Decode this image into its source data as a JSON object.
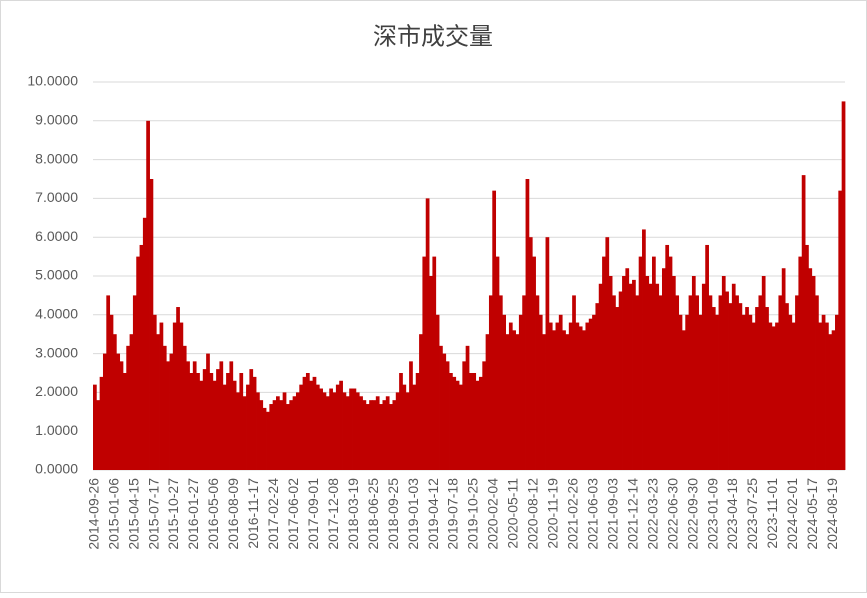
{
  "chart_data": {
    "type": "bar",
    "title": "深市成交量",
    "color": "#c00000",
    "grid": true,
    "ylim": [
      0,
      10
    ],
    "yticks": [
      {
        "value": 0,
        "label": "0.0000"
      },
      {
        "value": 1,
        "label": "1.0000"
      },
      {
        "value": 2,
        "label": "2.0000"
      },
      {
        "value": 3,
        "label": "3.0000"
      },
      {
        "value": 4,
        "label": "4.0000"
      },
      {
        "value": 5,
        "label": "5.0000"
      },
      {
        "value": 6,
        "label": "6.0000"
      },
      {
        "value": 7,
        "label": "7.0000"
      },
      {
        "value": 8,
        "label": "8.0000"
      },
      {
        "value": 9,
        "label": "9.0000"
      },
      {
        "value": 10,
        "label": "10.0000"
      }
    ],
    "categories": [
      "2014-09-26",
      null,
      null,
      null,
      null,
      null,
      "2015-01-06",
      null,
      null,
      null,
      null,
      null,
      "2015-04-15",
      null,
      null,
      null,
      null,
      null,
      "2015-07-17",
      null,
      null,
      null,
      null,
      null,
      "2015-10-27",
      null,
      null,
      null,
      null,
      null,
      "2016-01-27",
      null,
      null,
      null,
      null,
      null,
      "2016-05-06",
      null,
      null,
      null,
      null,
      null,
      "2016-08-09",
      null,
      null,
      null,
      null,
      null,
      "2016-11-17",
      null,
      null,
      null,
      null,
      null,
      "2017-02-24",
      null,
      null,
      null,
      null,
      null,
      "2017-06-02",
      null,
      null,
      null,
      null,
      null,
      "2017-09-01",
      null,
      null,
      null,
      null,
      null,
      "2017-12-08",
      null,
      null,
      null,
      null,
      null,
      "2018-03-19",
      null,
      null,
      null,
      null,
      null,
      "2018-06-25",
      null,
      null,
      null,
      null,
      null,
      "2018-09-25",
      null,
      null,
      null,
      null,
      null,
      "2019-01-03",
      null,
      null,
      null,
      null,
      null,
      "2019-04-12",
      null,
      null,
      null,
      null,
      null,
      "2019-07-18",
      null,
      null,
      null,
      null,
      null,
      "2019-10-25",
      null,
      null,
      null,
      null,
      null,
      "2020-02-04",
      null,
      null,
      null,
      null,
      null,
      "2020-05-11",
      null,
      null,
      null,
      null,
      null,
      "2020-08-12",
      null,
      null,
      null,
      null,
      null,
      "2020-11-19",
      null,
      null,
      null,
      null,
      null,
      "2021-02-26",
      null,
      null,
      null,
      null,
      null,
      "2021-06-03",
      null,
      null,
      null,
      null,
      null,
      "2021-09-03",
      null,
      null,
      null,
      null,
      null,
      "2021-12-14",
      null,
      null,
      null,
      null,
      null,
      "2022-03-23",
      null,
      null,
      null,
      null,
      null,
      "2022-06-30",
      null,
      null,
      null,
      null,
      null,
      "2022-09-30",
      null,
      null,
      null,
      null,
      null,
      "2023-01-09",
      null,
      null,
      null,
      null,
      null,
      "2023-04-18",
      null,
      null,
      null,
      null,
      null,
      "2023-07-25",
      null,
      null,
      null,
      null,
      null,
      "2023-11-01",
      null,
      null,
      null,
      null,
      null,
      "2024-02-01",
      null,
      null,
      null,
      null,
      null,
      "2024-05-17",
      null,
      null,
      null,
      null,
      null,
      "2024-08-19",
      null,
      null,
      null
    ],
    "values": [
      2.2,
      1.8,
      2.4,
      3.0,
      4.5,
      4.0,
      3.5,
      3.0,
      2.8,
      2.5,
      3.2,
      3.5,
      4.5,
      5.5,
      5.8,
      6.5,
      9.0,
      7.5,
      4.0,
      3.5,
      3.8,
      3.2,
      2.8,
      3.0,
      3.8,
      4.2,
      3.8,
      3.2,
      2.8,
      2.5,
      2.8,
      2.5,
      2.3,
      2.6,
      3.0,
      2.5,
      2.3,
      2.6,
      2.8,
      2.2,
      2.5,
      2.8,
      2.3,
      2.0,
      2.5,
      1.9,
      2.2,
      2.6,
      2.4,
      2.0,
      1.8,
      1.6,
      1.5,
      1.7,
      1.8,
      1.9,
      1.8,
      2.0,
      1.7,
      1.8,
      1.9,
      2.0,
      2.2,
      2.4,
      2.5,
      2.3,
      2.4,
      2.2,
      2.1,
      2.0,
      1.9,
      2.1,
      2.0,
      2.2,
      2.3,
      2.0,
      1.9,
      2.1,
      2.1,
      2.0,
      1.9,
      1.8,
      1.7,
      1.8,
      1.8,
      1.9,
      1.7,
      1.8,
      1.9,
      1.7,
      1.8,
      2.0,
      2.5,
      2.2,
      2.0,
      2.8,
      2.2,
      2.5,
      3.5,
      5.5,
      7.0,
      5.0,
      5.5,
      4.0,
      3.2,
      3.0,
      2.8,
      2.5,
      2.4,
      2.3,
      2.2,
      2.8,
      3.2,
      2.5,
      2.5,
      2.3,
      2.4,
      2.8,
      3.5,
      4.5,
      7.2,
      5.5,
      4.5,
      4.0,
      3.5,
      3.8,
      3.6,
      3.5,
      4.0,
      4.5,
      7.5,
      6.0,
      5.5,
      4.5,
      4.0,
      3.5,
      6.0,
      3.8,
      3.6,
      3.8,
      4.0,
      3.6,
      3.5,
      3.8,
      4.5,
      3.8,
      3.7,
      3.6,
      3.8,
      3.9,
      4.0,
      4.3,
      4.8,
      5.5,
      6.0,
      5.0,
      4.5,
      4.2,
      4.6,
      5.0,
      5.2,
      4.8,
      4.9,
      4.5,
      5.5,
      6.2,
      5.0,
      4.8,
      5.5,
      4.8,
      4.5,
      5.2,
      5.8,
      5.5,
      5.0,
      4.5,
      4.0,
      3.6,
      4.0,
      4.5,
      5.0,
      4.5,
      4.0,
      4.8,
      5.8,
      4.5,
      4.2,
      4.0,
      4.5,
      5.0,
      4.6,
      4.3,
      4.8,
      4.5,
      4.3,
      4.0,
      4.2,
      4.0,
      3.8,
      4.2,
      4.5,
      5.0,
      4.2,
      3.8,
      3.7,
      3.8,
      4.5,
      5.2,
      4.3,
      4.0,
      3.8,
      4.5,
      5.5,
      7.6,
      5.8,
      5.2,
      5.0,
      4.5,
      3.8,
      4.0,
      3.8,
      3.5,
      3.6,
      4.0,
      7.2,
      9.5
    ]
  }
}
